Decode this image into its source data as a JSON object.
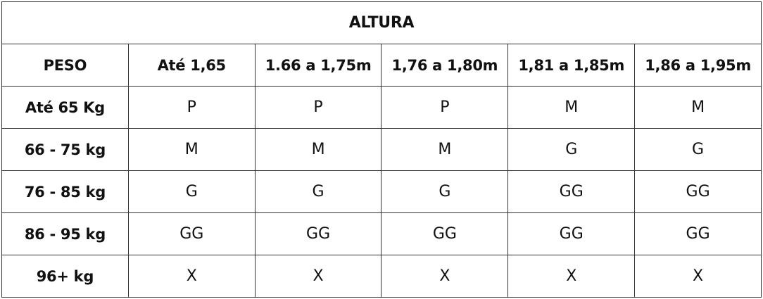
{
  "title": "ALTURA",
  "corner_header": "PESO",
  "columns": [
    "Até 1,65",
    "1.66 a 1,75m",
    "1,76 a 1,80m",
    "1,81 a 1,85m",
    "1,86 a 1,95m"
  ],
  "rows": [
    {
      "label": "Até 65 Kg",
      "values": [
        "P",
        "P",
        "P",
        "M",
        "M"
      ]
    },
    {
      "label": "66 - 75 kg",
      "values": [
        "M",
        "M",
        "M",
        "G",
        "G"
      ]
    },
    {
      "label": "76 - 85 kg",
      "values": [
        "G",
        "G",
        "G",
        "GG",
        "GG"
      ]
    },
    {
      "label": "86 - 95 kg",
      "values": [
        "GG",
        "GG",
        "GG",
        "GG",
        "GG"
      ]
    },
    {
      "label": "96+ kg",
      "values": [
        "X",
        "X",
        "X",
        "X",
        "X"
      ]
    }
  ]
}
